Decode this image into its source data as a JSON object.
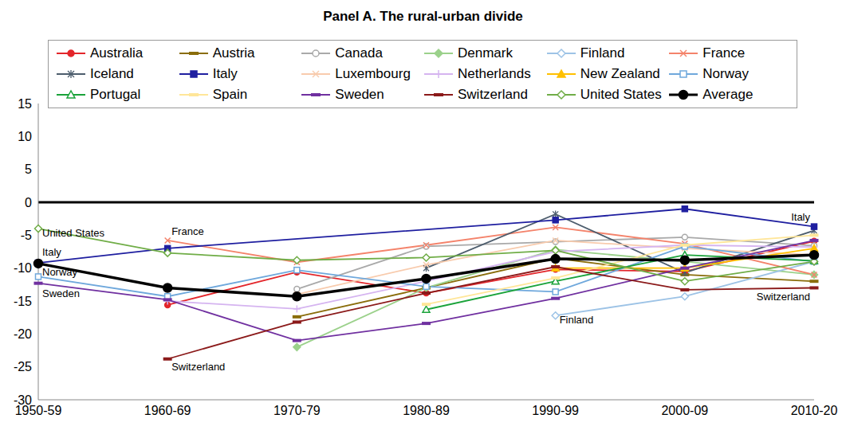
{
  "chart_data": {
    "type": "line",
    "title": "Panel A. The rural-urban divide",
    "categories": [
      "1950-59",
      "1960-69",
      "1970-79",
      "1980-89",
      "1990-99",
      "2000-09",
      "2010-20"
    ],
    "ylim": [
      -30,
      15
    ],
    "yticks": [
      -30,
      -25,
      -20,
      -15,
      -10,
      -5,
      0,
      5,
      10,
      15
    ],
    "hline": 0,
    "legend": "top",
    "grid": false,
    "series": [
      {
        "name": "Australia",
        "color": "#e3262b",
        "marker": "circle",
        "values": [
          null,
          -15.6,
          -10.6,
          -13.8,
          -10.2,
          -10.5,
          -5.9
        ]
      },
      {
        "name": "Austria",
        "color": "#8a6d0b",
        "marker": "dash",
        "values": [
          null,
          null,
          -17.4,
          -13,
          -8.5,
          -11,
          -12
        ]
      },
      {
        "name": "Canada",
        "color": "#a9a9a9",
        "marker": "open_circle",
        "values": [
          null,
          null,
          -13.2,
          -6.7,
          -6,
          -5.3,
          -6.6
        ]
      },
      {
        "name": "Denmark",
        "color": "#9bd18b",
        "marker": "diamond",
        "values": [
          null,
          null,
          -22,
          -13,
          -7.2,
          -9,
          -11
        ]
      },
      {
        "name": "Finland",
        "color": "#9dc3e6",
        "marker": "open_diamond",
        "values": [
          null,
          null,
          null,
          null,
          -17.2,
          -14.3,
          -9
        ]
      },
      {
        "name": "France",
        "color": "#f4836b",
        "marker": "cross",
        "values": [
          null,
          -5.8,
          -9.1,
          -6.5,
          -3.8,
          -6.3,
          -11
        ]
      },
      {
        "name": "Iceland",
        "color": "#4d5d6d",
        "marker": "asterisk",
        "values": [
          null,
          null,
          null,
          -10,
          -1.8,
          -10.7,
          -4.3
        ]
      },
      {
        "name": "Italy",
        "color": "#1f1fa0",
        "marker": "square",
        "values": [
          -9.2,
          -7,
          null,
          null,
          -2.7,
          -1,
          -3.7
        ]
      },
      {
        "name": "Luxembourg",
        "color": "#f8cbad",
        "marker": "cross",
        "values": [
          null,
          null,
          -14,
          -9.5,
          -5.8,
          -7,
          -8
        ]
      },
      {
        "name": "Netherlands",
        "color": "#d5b4f0",
        "marker": "plus",
        "values": [
          null,
          -15,
          -16.2,
          -12,
          -7.5,
          -6.5,
          -6.8
        ]
      },
      {
        "name": "New Zealand",
        "color": "#ffc000",
        "marker": "triangle",
        "values": [
          null,
          null,
          null,
          null,
          -10,
          -10,
          -7
        ]
      },
      {
        "name": "Norway",
        "color": "#6fa8dc",
        "marker": "open_square",
        "values": [
          -11.3,
          -14.3,
          -10.3,
          -12.8,
          -13.6,
          -6.7,
          -9
        ]
      },
      {
        "name": "Portugal",
        "color": "#1aa33a",
        "marker": "open_triangle",
        "values": [
          null,
          null,
          null,
          -16.3,
          -12,
          -8,
          -8.9
        ]
      },
      {
        "name": "Spain",
        "color": "#ffe699",
        "marker": "dash",
        "values": [
          null,
          null,
          null,
          -15.5,
          -11.5,
          -6.5,
          -5
        ]
      },
      {
        "name": "Sweden",
        "color": "#7030a0",
        "marker": "dash",
        "values": [
          -12.3,
          -14.8,
          -21,
          -18.4,
          -14.6,
          -10,
          -5.8
        ]
      },
      {
        "name": "Switzerland",
        "color": "#8b1a1a",
        "marker": "dash",
        "values": [
          null,
          -23.8,
          -18.2,
          -13.8,
          -9.8,
          -13.3,
          -13
        ]
      },
      {
        "name": "United States",
        "color": "#70ad47",
        "marker": "open_diamond",
        "values": [
          -4,
          -7.7,
          -8.8,
          -8.4,
          -7.3,
          -12,
          -9
        ]
      },
      {
        "name": "Average",
        "color": "#000000",
        "marker": "circle",
        "values": [
          -9.3,
          -13,
          -14.3,
          -11.6,
          -8.6,
          -8.8,
          -8
        ]
      }
    ],
    "annotations": [
      {
        "text": "United States",
        "x": "1950-59",
        "y": -4.6
      },
      {
        "text": "France",
        "x": "1960-69",
        "y": -4.4
      },
      {
        "text": "Italy",
        "x": "1950-59",
        "y": -7.6
      },
      {
        "text": "Norway",
        "x": "1950-59",
        "y": -10.6
      },
      {
        "text": "Sweden",
        "x": "1950-59",
        "y": -13.8
      },
      {
        "text": "Switzerland",
        "x": "1960-69",
        "y": -25
      },
      {
        "text": "Finland",
        "x": "1990-99",
        "y": -17.8
      },
      {
        "text": "Italy",
        "x": "2010-20",
        "y": -2.2
      },
      {
        "text": "Switzerland",
        "x": "2010-20",
        "y": -14.3
      }
    ]
  }
}
